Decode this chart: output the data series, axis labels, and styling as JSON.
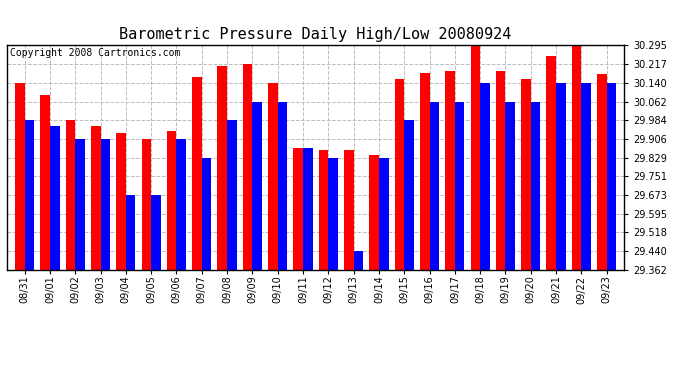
{
  "title": "Barometric Pressure Daily High/Low 20080924",
  "copyright": "Copyright 2008 Cartronics.com",
  "categories": [
    "08/31",
    "09/01",
    "09/02",
    "09/03",
    "09/04",
    "09/05",
    "09/06",
    "09/07",
    "09/08",
    "09/09",
    "09/10",
    "09/11",
    "09/12",
    "09/13",
    "09/14",
    "09/15",
    "09/16",
    "09/17",
    "09/18",
    "09/19",
    "09/20",
    "09/21",
    "09/22",
    "09/23"
  ],
  "high": [
    30.14,
    30.09,
    29.984,
    29.96,
    29.93,
    29.906,
    29.94,
    30.165,
    30.21,
    30.22,
    30.14,
    29.87,
    29.862,
    29.86,
    29.84,
    30.155,
    30.18,
    30.19,
    30.295,
    30.19,
    30.155,
    30.25,
    30.295,
    30.175
  ],
  "low": [
    29.984,
    29.96,
    29.906,
    29.906,
    29.673,
    29.673,
    29.906,
    29.829,
    29.984,
    30.062,
    30.062,
    29.87,
    29.829,
    29.44,
    29.829,
    29.984,
    30.062,
    30.062,
    30.14,
    30.062,
    30.062,
    30.14,
    30.14,
    30.14
  ],
  "high_color": "#ff0000",
  "low_color": "#0000ff",
  "bg_color": "#ffffff",
  "plot_bg_color": "#ffffff",
  "grid_color": "#bbbbbb",
  "ymin": 29.362,
  "ymax": 30.295,
  "yticks": [
    29.362,
    29.44,
    29.518,
    29.595,
    29.673,
    29.751,
    29.829,
    29.906,
    29.984,
    30.062,
    30.14,
    30.217,
    30.295
  ],
  "title_fontsize": 11,
  "copyright_fontsize": 7,
  "tick_fontsize": 7,
  "bar_width": 0.38
}
